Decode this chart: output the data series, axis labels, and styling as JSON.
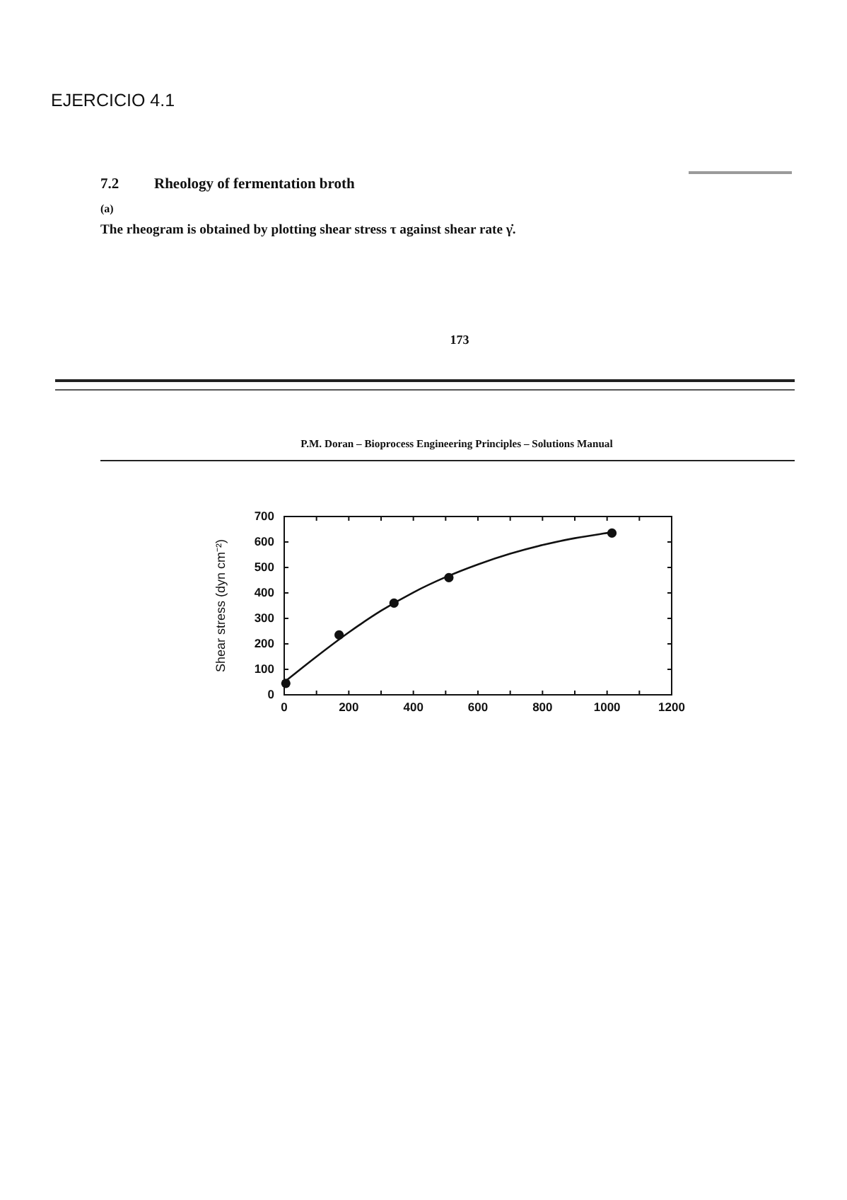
{
  "chart_data": {
    "type": "scatter",
    "title": "EJERCICIO 4.1",
    "subtitle": "7.2 Rheology of fermentation broth",
    "ylabel": "Shear stress (dyn cm⁻²)",
    "annotations": [
      "(a)",
      "The rheogram is obtained by plotting shear stress τ against shear rate γ̇.",
      "173",
      "P.M. Doran – Bioprocess Engineering Principles – Solutions Manual"
    ],
    "series": [
      {
        "type": "scatter",
        "x": [
          5,
          170,
          340,
          510,
          1015
        ],
        "values": [
          45,
          235,
          360,
          460,
          635
        ],
        "color": "#111111"
      },
      {
        "type": "line",
        "x": [
          0,
          100,
          200,
          300,
          400,
          500,
          600,
          700,
          800,
          900,
          1015
        ],
        "values": [
          50,
          150,
          245,
          330,
          402,
          462,
          512,
          554,
          588,
          615,
          638
        ],
        "color": "#111111",
        "marker": "none"
      }
    ],
    "xlim": [
      0,
      1200
    ],
    "xticks": [
      0,
      {
        "value": 100,
        "label": null
      },
      200,
      {
        "value": 300,
        "label": null
      },
      400,
      {
        "value": 500,
        "label": null
      },
      600,
      {
        "value": 700,
        "label": null
      },
      800,
      {
        "value": 900,
        "label": null
      },
      1000,
      {
        "value": 1100,
        "label": null
      },
      1200
    ],
    "ylim": [
      0,
      700
    ],
    "yticks": [
      0,
      100,
      200,
      300,
      400,
      500,
      600,
      700
    ],
    "grid": false,
    "legend": false,
    "marker": "circle",
    "line_style": "solid"
  }
}
